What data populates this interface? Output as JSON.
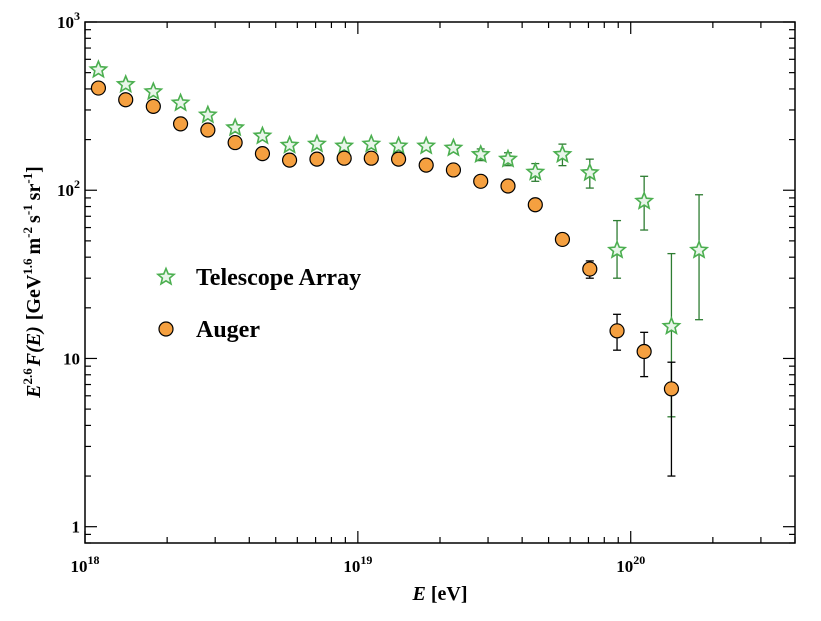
{
  "chart_data": {
    "type": "scatter",
    "xscale": "log",
    "yscale": "log",
    "xlim": [
      1e+18,
      4e+20
    ],
    "ylim": [
      0.8,
      1000
    ],
    "xlabel": {
      "var": "E",
      "unit": "[eV]"
    },
    "ylabel": {
      "pre": "E",
      "pre_sup": "2.6",
      "func": "F(E)",
      "unit_open": "[GeV",
      "unit_sup1": "1.6",
      "unit_mid1": "m",
      "unit_sup2": "-2",
      "unit_mid2": "s",
      "unit_sup3": "-1",
      "unit_mid3": "sr",
      "unit_sup4": "-1",
      "unit_close": "]"
    },
    "x_ticks": [
      {
        "value": 1e+18,
        "base": "10",
        "exp": "18"
      },
      {
        "value": 1e+19,
        "base": "10",
        "exp": "19"
      },
      {
        "value": 1e+20,
        "base": "10",
        "exp": "20"
      }
    ],
    "y_ticks": [
      {
        "value": 1,
        "base": "1",
        "exp": ""
      },
      {
        "value": 10,
        "base": "10",
        "exp": ""
      },
      {
        "value": 100,
        "base": "10",
        "exp": "2"
      },
      {
        "value": 1000,
        "base": "10",
        "exp": "3"
      }
    ],
    "legend_position": "middle-left",
    "series": [
      {
        "name": "Telescope Array",
        "marker": "star",
        "color": "#4caf50",
        "fill": "#e8f5e9",
        "error_color": "#2e7d32",
        "points": [
          {
            "x": 1.12e+18,
            "y": 520
          },
          {
            "x": 1.41e+18,
            "y": 425
          },
          {
            "x": 1.78e+18,
            "y": 385
          },
          {
            "x": 2.24e+18,
            "y": 330
          },
          {
            "x": 2.82e+18,
            "y": 280
          },
          {
            "x": 3.55e+18,
            "y": 235
          },
          {
            "x": 4.47e+18,
            "y": 210
          },
          {
            "x": 5.62e+18,
            "y": 185
          },
          {
            "x": 7.08e+18,
            "y": 188
          },
          {
            "x": 8.91e+18,
            "y": 183
          },
          {
            "x": 1.12e+19,
            "y": 188
          },
          {
            "x": 1.41e+19,
            "y": 183
          },
          {
            "x": 1.78e+19,
            "y": 183
          },
          {
            "x": 2.24e+19,
            "y": 178
          },
          {
            "x": 2.82e+19,
            "y": 163,
            "ylo": 150,
            "yhi": 176
          },
          {
            "x": 3.55e+19,
            "y": 153,
            "ylo": 140,
            "yhi": 167
          },
          {
            "x": 4.47e+19,
            "y": 128,
            "ylo": 113,
            "yhi": 144
          },
          {
            "x": 5.62e+19,
            "y": 163,
            "ylo": 140,
            "yhi": 188
          },
          {
            "x": 7.08e+19,
            "y": 127,
            "ylo": 103,
            "yhi": 153
          },
          {
            "x": 8.91e+19,
            "y": 44,
            "ylo": 30,
            "yhi": 66
          },
          {
            "x": 1.12e+20,
            "y": 86,
            "ylo": 58,
            "yhi": 121
          },
          {
            "x": 1.41e+20,
            "y": 15.5,
            "ylo": 4.5,
            "yhi": 42
          },
          {
            "x": 1.78e+20,
            "y": 44,
            "ylo": 17,
            "yhi": 94
          }
        ]
      },
      {
        "name": "Auger",
        "marker": "circle",
        "color": "#f5a040",
        "stroke": "#000000",
        "error_color": "#000000",
        "points": [
          {
            "x": 1.12e+18,
            "y": 405
          },
          {
            "x": 1.41e+18,
            "y": 345
          },
          {
            "x": 1.78e+18,
            "y": 315
          },
          {
            "x": 2.24e+18,
            "y": 248
          },
          {
            "x": 2.82e+18,
            "y": 228
          },
          {
            "x": 3.55e+18,
            "y": 192
          },
          {
            "x": 4.47e+18,
            "y": 165
          },
          {
            "x": 5.62e+18,
            "y": 151
          },
          {
            "x": 7.08e+18,
            "y": 153
          },
          {
            "x": 8.91e+18,
            "y": 155
          },
          {
            "x": 1.12e+19,
            "y": 155
          },
          {
            "x": 1.41e+19,
            "y": 153
          },
          {
            "x": 1.78e+19,
            "y": 141
          },
          {
            "x": 2.24e+19,
            "y": 132
          },
          {
            "x": 2.82e+19,
            "y": 113
          },
          {
            "x": 3.55e+19,
            "y": 106
          },
          {
            "x": 4.47e+19,
            "y": 82
          },
          {
            "x": 5.62e+19,
            "y": 51
          },
          {
            "x": 7.08e+19,
            "y": 34,
            "ylo": 30,
            "yhi": 38
          },
          {
            "x": 8.91e+19,
            "y": 14.6,
            "ylo": 11.2,
            "yhi": 18.3
          },
          {
            "x": 1.12e+20,
            "y": 11,
            "ylo": 7.8,
            "yhi": 14.3
          },
          {
            "x": 1.41e+20,
            "y": 6.6,
            "ylo": 2.0,
            "yhi": 9.5
          }
        ]
      }
    ]
  }
}
